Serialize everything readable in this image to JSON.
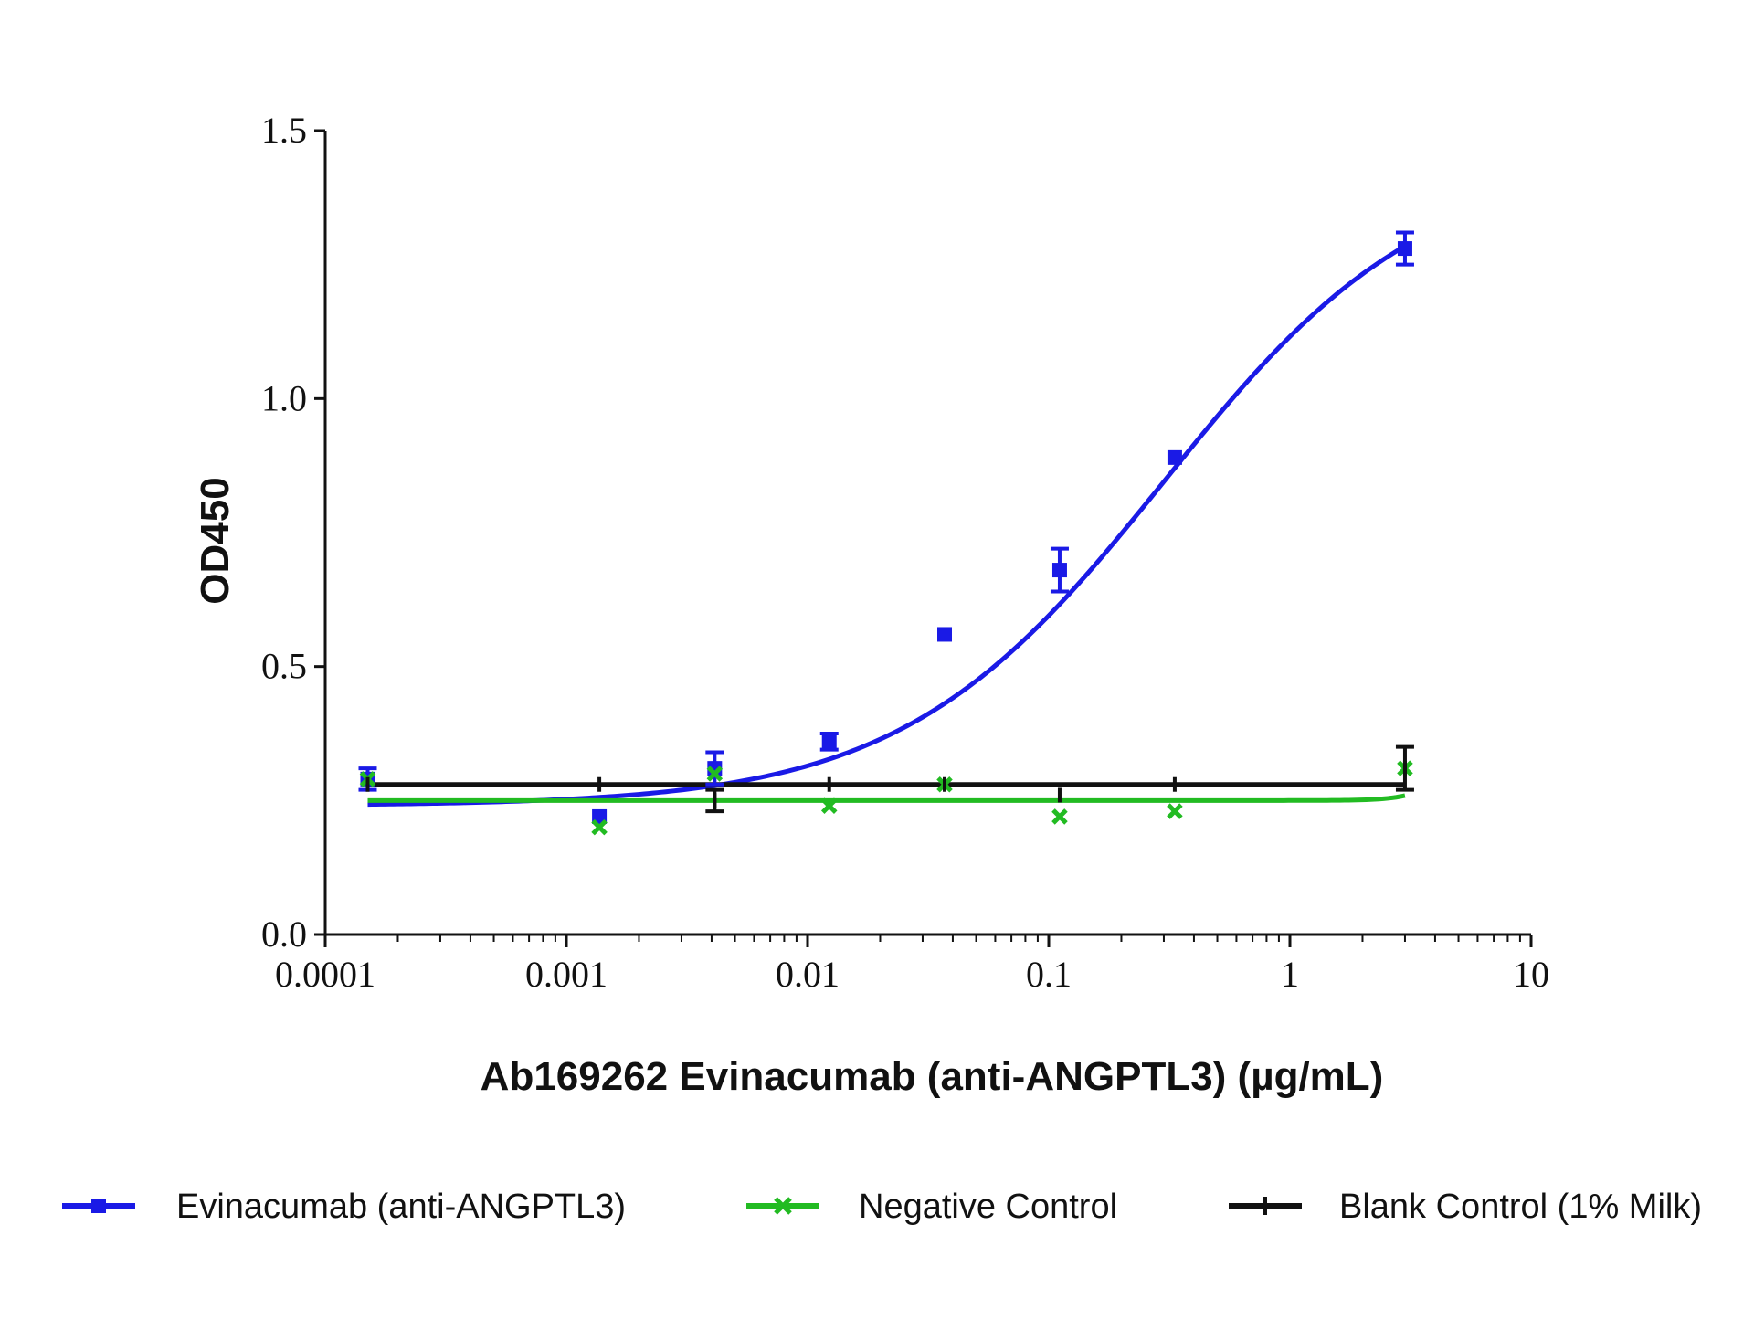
{
  "chart_data": {
    "type": "scatter",
    "xscale": "log",
    "xlim": [
      0.0001,
      10
    ],
    "ylim": [
      0.0,
      1.5
    ],
    "xlabel": "Ab169262 Evinacumab (anti-ANGPTL3) (µg/mL)",
    "ylabel": "OD450",
    "x_ticks": [
      0.0001,
      0.001,
      0.01,
      0.1,
      1,
      10
    ],
    "x_tick_labels": [
      "0.0001",
      "0.001",
      "0.01",
      "0.1",
      "1",
      "10"
    ],
    "y_ticks": [
      0.0,
      0.5,
      1.0,
      1.5
    ],
    "y_tick_labels": [
      "0.0",
      "0.5",
      "1.0",
      "1.5"
    ],
    "legend_position": "bottom",
    "series": [
      {
        "name": "Evinacumab (anti-ANGPTL3)",
        "color": "#1a1ae6",
        "marker": "square",
        "x": [
          0.00015,
          0.00137,
          0.00412,
          0.0123,
          0.037,
          0.111,
          0.333,
          3.0
        ],
        "y": [
          0.29,
          0.22,
          0.31,
          0.36,
          0.56,
          0.68,
          0.89,
          1.28
        ],
        "error": [
          0.02,
          0.0,
          0.03,
          0.015,
          0.0,
          0.04,
          0.0,
          0.03
        ],
        "fit": {
          "bottom": 0.24,
          "top": 1.45,
          "ec50": 0.3,
          "hill": 0.8
        }
      },
      {
        "name": "Negative Control",
        "color": "#22bb22",
        "marker": "x",
        "x": [
          0.00015,
          0.00137,
          0.00412,
          0.0123,
          0.037,
          0.111,
          0.333,
          3.0
        ],
        "y": [
          0.29,
          0.2,
          0.3,
          0.24,
          0.28,
          0.22,
          0.23,
          0.31
        ],
        "error": [
          0.0,
          0.0,
          0.0,
          0.0,
          0.0,
          0.0,
          0.0,
          0.0
        ],
        "fit": {
          "bottom": 0.25,
          "top": 0.9,
          "ec50": 7.0,
          "hill": 5.0
        }
      },
      {
        "name": "Blank Control (1% Milk)",
        "color": "#111111",
        "marker": "dash",
        "x": [
          0.00015,
          0.00137,
          0.00412,
          0.0123,
          0.037,
          0.111,
          0.333,
          3.0
        ],
        "y": [
          0.28,
          0.28,
          0.25,
          0.28,
          0.28,
          0.26,
          0.28,
          0.31
        ],
        "error": [
          0.0,
          0.0,
          0.02,
          0.0,
          0.0,
          0.0,
          0.0,
          0.04
        ],
        "fit": {
          "constant": 0.28
        }
      }
    ]
  }
}
